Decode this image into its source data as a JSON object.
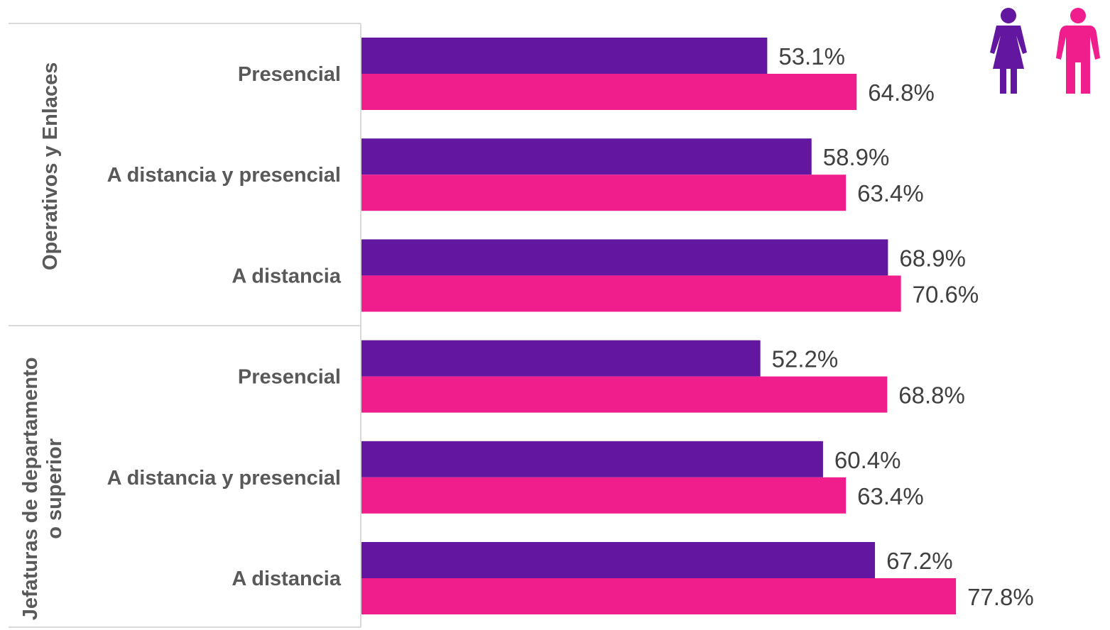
{
  "colors": {
    "mujeres": "#6316a0",
    "hombres": "#f01d8c",
    "label_text": "#595959",
    "value_text": "#404040",
    "frame": "#d9d9d9"
  },
  "legend_icons": [
    "female-person-icon",
    "male-person-icon"
  ],
  "chart_data": {
    "type": "bar",
    "orientation": "horizontal",
    "groups": [
      {
        "label": "Operativos y Enlaces",
        "label_lines": [
          "Operativos y Enlaces"
        ],
        "categories": [
          "Presencial",
          "A distancia y presencial",
          "A distancia"
        ]
      },
      {
        "label": "Jefaturas de departamento o superior",
        "label_lines": [
          "Jefaturas de departamento",
          "o superior"
        ],
        "categories": [
          "Presencial",
          "A distancia y presencial",
          "A distancia"
        ]
      }
    ],
    "series": [
      {
        "values": [
          53.1,
          58.9,
          68.9,
          52.2,
          60.4,
          67.2
        ],
        "labels": [
          "53.1%",
          "58.9%",
          "68.9%",
          "52.2%",
          "60.4%",
          "67.2%"
        ]
      },
      {
        "values": [
          64.8,
          63.4,
          70.6,
          68.8,
          63.4,
          77.8
        ],
        "labels": [
          "64.8%",
          "63.4%",
          "70.6%",
          "68.8%",
          "63.4%",
          "77.8%"
        ]
      }
    ],
    "xlim": [
      0,
      100
    ],
    "grid": false,
    "legend": "top-right icons"
  }
}
